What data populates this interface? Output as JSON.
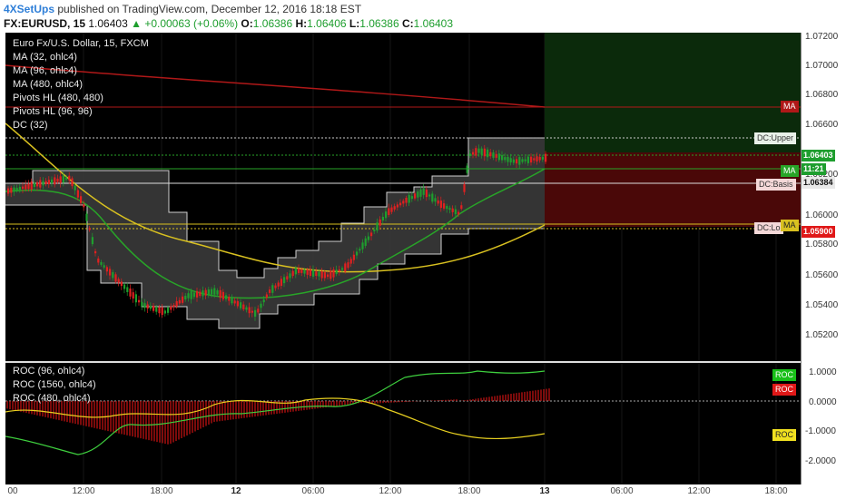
{
  "header": {
    "brand": "4XSetUps",
    "published": "published on TradingView.com, December 12, 2016 18:18 EST",
    "symbol": "FX:EURUSD, 15",
    "last": "1.06403",
    "change": "▲ +0.00063 (+0.06%)",
    "open_label": "O:",
    "open": "1.06386",
    "high_label": "H:",
    "high": "1.06406",
    "low_label": "L:",
    "low": "1.06386",
    "close_label": "C:",
    "close": "1.06403"
  },
  "legend": {
    "title": "Euro Fx/U.S. Dollar, 15, FXCM",
    "items": [
      "MA (32, ohlc4)",
      "MA (96, ohlc4)",
      "MA (480, ohlc4)",
      "Pivots HL (480, 480)",
      "Pivots HL (96, 96)",
      "DC (32)"
    ]
  },
  "roc_legend": [
    "ROC (96, ohlc4)",
    "ROC (1560, ohlc4)",
    "ROC (480, ohlc4)"
  ],
  "price_axis": [
    "1.07200",
    "1.07000",
    "1.06800",
    "1.06600",
    "1.06200",
    "1.06000",
    "1.05800",
    "1.05600",
    "1.05400",
    "1.05200"
  ],
  "roc_axis": [
    "1.0000",
    "0.0000",
    "-1.0000",
    "-2.0000"
  ],
  "time_axis": [
    {
      "label": "00",
      "bold": false
    },
    {
      "label": "12:00",
      "bold": false
    },
    {
      "label": "18:00",
      "bold": false
    },
    {
      "label": "12",
      "bold": true
    },
    {
      "label": "06:00",
      "bold": false
    },
    {
      "label": "12:00",
      "bold": false
    },
    {
      "label": "18:00",
      "bold": false
    },
    {
      "label": "13",
      "bold": true
    },
    {
      "label": "06:00",
      "bold": false
    },
    {
      "label": "12:00",
      "bold": false
    },
    {
      "label": "18:00",
      "bold": false
    }
  ],
  "price_labels": {
    "last": "1.06403",
    "time_left": "11:21",
    "ma": "1.06384",
    "low": "1.05900"
  },
  "badges": {
    "ma_top": "MA",
    "dc_upper": "DC:Upper",
    "ma_mid": "MA",
    "dc_basis": "DC:Basis",
    "dc_lower": "DC:Lo",
    "ma_low": "MA",
    "roc_green": "ROC",
    "roc_red": "ROC",
    "roc_yellow": "ROC"
  },
  "colors": {
    "up": "#1e9e2e",
    "down": "#e02020",
    "ma32": "#28a428",
    "ma96": "#d8c020",
    "ma480": "#b01818",
    "brand": "#2f7fd8"
  }
}
